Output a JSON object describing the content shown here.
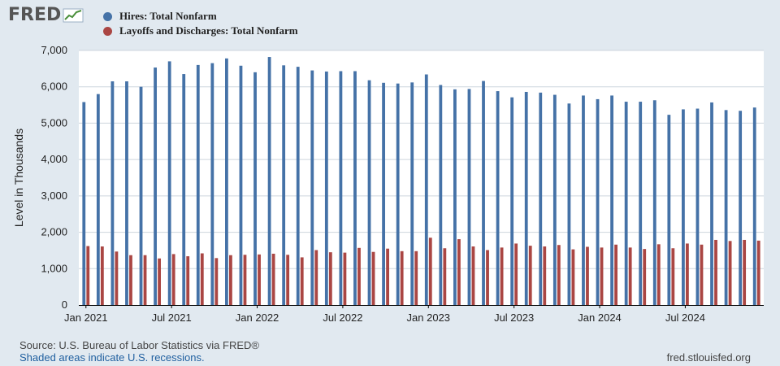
{
  "logo": {
    "text": "FRED",
    "icon": "fred-trend-icon"
  },
  "colors": {
    "background": "#e1e9f0",
    "plot_bg": "#ffffff",
    "gridline": "#cdd5dd",
    "hires": "#4572a7",
    "layoffs": "#aa4643"
  },
  "footer": {
    "source": "Source: U.S. Bureau of Labor Statistics via FRED®",
    "note": "Shaded areas indicate U.S. recessions.",
    "url": "fred.stlouisfed.org"
  },
  "chart_data": {
    "type": "bar",
    "ylabel": "Level in Thousands",
    "ylim": [
      0,
      7000
    ],
    "yticks": [
      "0",
      "1,000",
      "2,000",
      "3,000",
      "4,000",
      "5,000",
      "6,000",
      "7,000"
    ],
    "grid": true,
    "legend_position": "top",
    "xtick_labels": [
      {
        "label": "Jan 2021",
        "index": 0
      },
      {
        "label": "Jul 2021",
        "index": 6
      },
      {
        "label": "Jan 2022",
        "index": 12
      },
      {
        "label": "Jul 2022",
        "index": 18
      },
      {
        "label": "Jan 2023",
        "index": 24
      },
      {
        "label": "Jul 2023",
        "index": 30
      },
      {
        "label": "Jan 2024",
        "index": 36
      },
      {
        "label": "Jul 2024",
        "index": 42
      }
    ],
    "categories": [
      "2021-01",
      "2021-02",
      "2021-03",
      "2021-04",
      "2021-05",
      "2021-06",
      "2021-07",
      "2021-08",
      "2021-09",
      "2021-10",
      "2021-11",
      "2021-12",
      "2022-01",
      "2022-02",
      "2022-03",
      "2022-04",
      "2022-05",
      "2022-06",
      "2022-07",
      "2022-08",
      "2022-09",
      "2022-10",
      "2022-11",
      "2022-12",
      "2023-01",
      "2023-02",
      "2023-03",
      "2023-04",
      "2023-05",
      "2023-06",
      "2023-07",
      "2023-08",
      "2023-09",
      "2023-10",
      "2023-11",
      "2023-12",
      "2024-01",
      "2024-02",
      "2024-03",
      "2024-04",
      "2024-05",
      "2024-06",
      "2024-07",
      "2024-08",
      "2024-09",
      "2024-10",
      "2024-11",
      "2024-12"
    ],
    "series": [
      {
        "name": "Hires: Total Nonfarm",
        "color": "#4572a7",
        "values": [
          5580,
          5800,
          6150,
          6150,
          6000,
          6530,
          6700,
          6350,
          6600,
          6650,
          6780,
          6580,
          6400,
          6820,
          6590,
          6550,
          6450,
          6420,
          6430,
          6430,
          6180,
          6110,
          6090,
          6120,
          6340,
          6050,
          5930,
          5940,
          6160,
          5880,
          5710,
          5860,
          5840,
          5780,
          5540,
          5760,
          5660,
          5760,
          5590,
          5590,
          5630,
          5230,
          5380,
          5400,
          5570,
          5360,
          5340,
          5430
        ]
      },
      {
        "name": "Layoffs and Discharges: Total Nonfarm",
        "color": "#aa4643",
        "values": [
          1620,
          1610,
          1470,
          1370,
          1370,
          1280,
          1400,
          1340,
          1420,
          1290,
          1370,
          1380,
          1390,
          1410,
          1380,
          1310,
          1510,
          1450,
          1440,
          1570,
          1460,
          1550,
          1480,
          1480,
          1850,
          1560,
          1810,
          1610,
          1510,
          1580,
          1690,
          1630,
          1610,
          1650,
          1530,
          1600,
          1580,
          1660,
          1580,
          1540,
          1670,
          1560,
          1690,
          1660,
          1790,
          1760,
          1790,
          1770
        ]
      }
    ]
  }
}
